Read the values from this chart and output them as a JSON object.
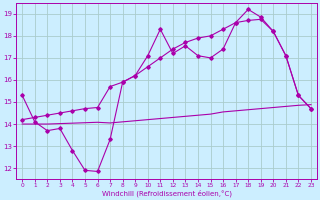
{
  "xlabel": "Windchill (Refroidissement éolien,°C)",
  "bg_color": "#cceeff",
  "grid_color": "#aacccc",
  "line_color": "#aa00aa",
  "x_hours": [
    0,
    1,
    2,
    3,
    4,
    5,
    6,
    7,
    8,
    9,
    10,
    11,
    12,
    13,
    14,
    15,
    16,
    17,
    18,
    19,
    20,
    21,
    22,
    23
  ],
  "line1_y": [
    15.3,
    14.1,
    13.7,
    13.8,
    12.8,
    11.9,
    11.85,
    13.3,
    15.9,
    16.2,
    17.1,
    18.3,
    17.2,
    17.55,
    17.1,
    17.0,
    17.4,
    18.6,
    19.2,
    18.85,
    18.2,
    17.1,
    15.3,
    14.7
  ],
  "line2_y": [
    14.2,
    14.3,
    14.4,
    14.5,
    14.6,
    14.7,
    14.75,
    15.7,
    15.9,
    16.2,
    16.6,
    17.0,
    17.4,
    17.7,
    17.9,
    18.0,
    18.3,
    18.6,
    18.7,
    18.75,
    18.2,
    17.1,
    15.3,
    14.7
  ],
  "line3_y": [
    14.0,
    14.0,
    14.0,
    14.02,
    14.04,
    14.06,
    14.08,
    14.05,
    14.1,
    14.15,
    14.2,
    14.25,
    14.3,
    14.35,
    14.4,
    14.45,
    14.55,
    14.6,
    14.65,
    14.7,
    14.75,
    14.8,
    14.85,
    14.88
  ],
  "ylim": [
    11.5,
    19.5
  ],
  "yticks": [
    12,
    13,
    14,
    15,
    16,
    17,
    18,
    19
  ],
  "xlim": [
    -0.5,
    23.5
  ],
  "xticks": [
    0,
    1,
    2,
    3,
    4,
    5,
    6,
    7,
    8,
    9,
    10,
    11,
    12,
    13,
    14,
    15,
    16,
    17,
    18,
    19,
    20,
    21,
    22,
    23
  ],
  "figwidth": 3.2,
  "figheight": 2.0,
  "dpi": 100
}
